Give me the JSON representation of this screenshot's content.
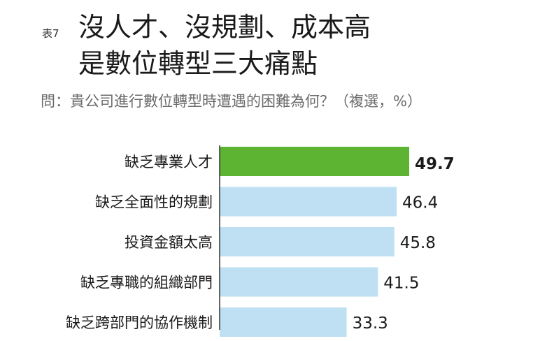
{
  "table_tag": "表7",
  "title_lines": [
    "沒人才、沒規劃、成本高",
    "是數位轉型三大痛點"
  ],
  "question": "問：貴公司進行數位轉型時遭遇的困難為何？（複選，%）",
  "colors": {
    "highlight_bar": "#5db332",
    "highlight_text": "#4ea82a",
    "normal_bar": "#bfe0f2",
    "axis": "#333333"
  },
  "chart_data": {
    "type": "bar",
    "orientation": "horizontal",
    "categories": [
      "缺乏專業人才",
      "缺乏全面性的規劃",
      "投資金額太高",
      "缺乏專職的組織部門",
      "缺乏跨部門的協作機制"
    ],
    "values": [
      49.7,
      46.4,
      45.8,
      41.5,
      33.3
    ],
    "value_labels": [
      "49.7",
      "46.4",
      "45.8",
      "41.5",
      "33.3"
    ],
    "highlight_index": 0,
    "xlim": [
      0,
      60
    ],
    "grid": false,
    "legend": "none"
  }
}
